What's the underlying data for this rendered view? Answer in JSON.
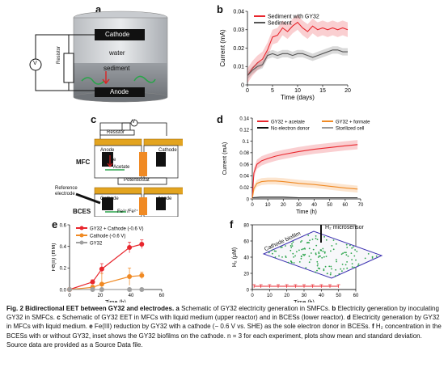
{
  "panels": {
    "a": {
      "label": "a",
      "cathode": "Cathode",
      "water": "water",
      "sediment": "sediment",
      "anode": "Anode",
      "resistor": "Resistor",
      "voltmeter": "V"
    },
    "c": {
      "label": "c",
      "mfc_label": "MFC",
      "bces_label": "BCES",
      "resistor": "Resistor",
      "voltmeter": "V",
      "anode": "Anode",
      "cathode": "Cathode",
      "acetate": "Acetate",
      "electron": "e",
      "potentiostat": "Potentiostat",
      "reference_electrode": "Reference electrode",
      "bces_cathode": "Cathode",
      "bces_anode": "Anode",
      "fe_text": "Fe³⁺/Fe²⁺"
    },
    "f": {
      "label": "f",
      "microsensor": "H₂ microsensor",
      "biofilm": "Cathode biofilm"
    }
  },
  "chart_data": [
    {
      "id": "b",
      "label": "b",
      "type": "line",
      "xlabel": "Time (days)",
      "ylabel": "Current (mA)",
      "xlim": [
        0,
        20
      ],
      "ylim": [
        0,
        0.04
      ],
      "xticks": [
        "0",
        "5",
        "10",
        "15",
        "20"
      ],
      "yticks": [
        "0",
        "0.01",
        "0.02",
        "0.03",
        "0.04"
      ],
      "legend_position": "top-left",
      "series": [
        {
          "name": "Sediment with GY32",
          "color": "#e8262d",
          "x": [
            0,
            1,
            2,
            3,
            4,
            5,
            6,
            7,
            8,
            9,
            10,
            11,
            12,
            13,
            14,
            15,
            16,
            17,
            18,
            19,
            20
          ],
          "values": [
            0.005,
            0.009,
            0.012,
            0.014,
            0.019,
            0.026,
            0.027,
            0.031,
            0.029,
            0.032,
            0.034,
            0.031,
            0.029,
            0.032,
            0.03,
            0.031,
            0.03,
            0.031,
            0.03,
            0.031,
            0.03
          ]
        },
        {
          "name": "Sediment",
          "color": "#555555",
          "x": [
            0,
            1,
            2,
            3,
            4,
            5,
            6,
            7,
            8,
            9,
            10,
            11,
            12,
            13,
            14,
            15,
            16,
            17,
            18,
            19,
            20
          ],
          "values": [
            0.005,
            0.008,
            0.01,
            0.011,
            0.016,
            0.017,
            0.016,
            0.017,
            0.017,
            0.016,
            0.017,
            0.017,
            0.016,
            0.015,
            0.016,
            0.017,
            0.018,
            0.019,
            0.019,
            0.018,
            0.018
          ]
        }
      ]
    },
    {
      "id": "d",
      "label": "d",
      "type": "line",
      "xlabel": "Time (h)",
      "ylabel": "Current (mA)",
      "xlim": [
        0,
        70
      ],
      "ylim": [
        0,
        0.14
      ],
      "xticks": [
        "0",
        "10",
        "20",
        "30",
        "40",
        "50",
        "60",
        "70"
      ],
      "yticks": [
        "0",
        "0.02",
        "0.04",
        "0.06",
        "0.08",
        "0.1",
        "0.12",
        "0.14"
      ],
      "legend_position": "top",
      "series": [
        {
          "name": "GY32 + acetate",
          "color": "#e8262d",
          "x": [
            0,
            1,
            3,
            6,
            10,
            15,
            20,
            30,
            40,
            50,
            60,
            68
          ],
          "values": [
            0.0,
            0.045,
            0.06,
            0.066,
            0.07,
            0.074,
            0.077,
            0.082,
            0.086,
            0.089,
            0.092,
            0.094
          ]
        },
        {
          "name": "GY32 + formate",
          "color": "#f08a24",
          "x": [
            0,
            1,
            3,
            6,
            10,
            15,
            20,
            30,
            40,
            50,
            60,
            68
          ],
          "values": [
            0.0,
            0.018,
            0.027,
            0.03,
            0.031,
            0.031,
            0.03,
            0.027,
            0.025,
            0.022,
            0.019,
            0.017
          ]
        },
        {
          "name": "No electron donor",
          "color": "#111111",
          "x": [
            0,
            5,
            10,
            20,
            30,
            40,
            50,
            60,
            68
          ],
          "values": [
            0.002,
            0.003,
            0.003,
            0.003,
            0.002,
            0.002,
            0.002,
            0.002,
            0.002
          ]
        },
        {
          "name": "Storilized cell",
          "color": "#9a9a9a",
          "x": [
            0,
            5,
            10,
            20,
            30,
            40,
            50,
            60,
            68
          ],
          "values": [
            0.001,
            0.001,
            0.001,
            0.001,
            0.001,
            0.001,
            0.001,
            0.001,
            0.001
          ]
        }
      ]
    },
    {
      "id": "e",
      "label": "e",
      "type": "line",
      "xlabel": "Time (h)",
      "ylabel": "Fe(II) (mM)",
      "xlim": [
        0,
        60
      ],
      "ylim": [
        0,
        0.6
      ],
      "xticks": [
        "0",
        "20",
        "40",
        "60"
      ],
      "yticks": [
        "0.0",
        "0.2",
        "0.4",
        "0.6"
      ],
      "legend_position": "top-left",
      "series": [
        {
          "name": "GY32 + Cathode (-0.6 V)",
          "color": "#e8262d",
          "x": [
            0,
            15,
            21,
            39,
            47
          ],
          "values": [
            0,
            0.07,
            0.19,
            0.39,
            0.42
          ],
          "err": [
            0,
            0.02,
            0.05,
            0.05,
            0.04
          ]
        },
        {
          "name": "Cathode (-0.6 V)",
          "color": "#f08a24",
          "x": [
            0,
            15,
            21,
            39,
            47
          ],
          "values": [
            0,
            0.02,
            0.05,
            0.12,
            0.13
          ],
          "err": [
            0,
            0.02,
            0.1,
            0.08,
            0.03
          ]
        },
        {
          "name": "GY32",
          "color": "#a0a0a0",
          "x": [
            0,
            15,
            21,
            39,
            47
          ],
          "values": [
            0,
            0,
            0,
            0,
            0
          ],
          "err": [
            0,
            0,
            0,
            0,
            0
          ]
        }
      ]
    },
    {
      "id": "f",
      "label": "f",
      "type": "line",
      "xlabel": "Time (h)",
      "ylabel": "H₂ (μM)",
      "xlim": [
        0,
        60
      ],
      "ylim": [
        0,
        80
      ],
      "xticks": [
        "0",
        "10",
        "20",
        "30",
        "40",
        "50",
        "60"
      ],
      "yticks": [
        "0",
        "20",
        "40",
        "60",
        "80"
      ],
      "legend_position": "none",
      "series": [
        {
          "name": "",
          "color": "#e8262d",
          "x": [
            1,
            5,
            10,
            15,
            20,
            25,
            30,
            35,
            40,
            45,
            50
          ],
          "values": [
            4,
            4,
            4,
            4,
            4,
            4,
            4,
            4,
            4,
            4,
            4
          ],
          "err": [
            2,
            2,
            2,
            2,
            2,
            2,
            2,
            2,
            2,
            2,
            2
          ]
        }
      ]
    }
  ],
  "caption": {
    "title": "Fig. 2 Bidirectional EET between GY32 and electrodes.",
    "body_a": " Schematic of GY32 electricity generation in SMFCs. ",
    "body_b": " Electricity generation by inoculating GY32 in SMFCs. ",
    "body_c": " Schematic of GY32 EET in MFCs with liquid medium (upper reactor) and in BCESs (lower reactor). ",
    "body_d": " Electricity generation by GY32 in MFCs with liquid medium. ",
    "body_e": " Fe(III) reduction by GY32 with a cathode (− 0.6 V vs. SHE) as the sole electron donor in BCESs. ",
    "body_f": " H₂ concentration in the BCESs with or without GY32, inset shows the GY32 biofilms on the cathode. ",
    "tail": "n = 3 for each experiment, plots show mean and standard deviation. Source data are provided as a Source Data file."
  }
}
